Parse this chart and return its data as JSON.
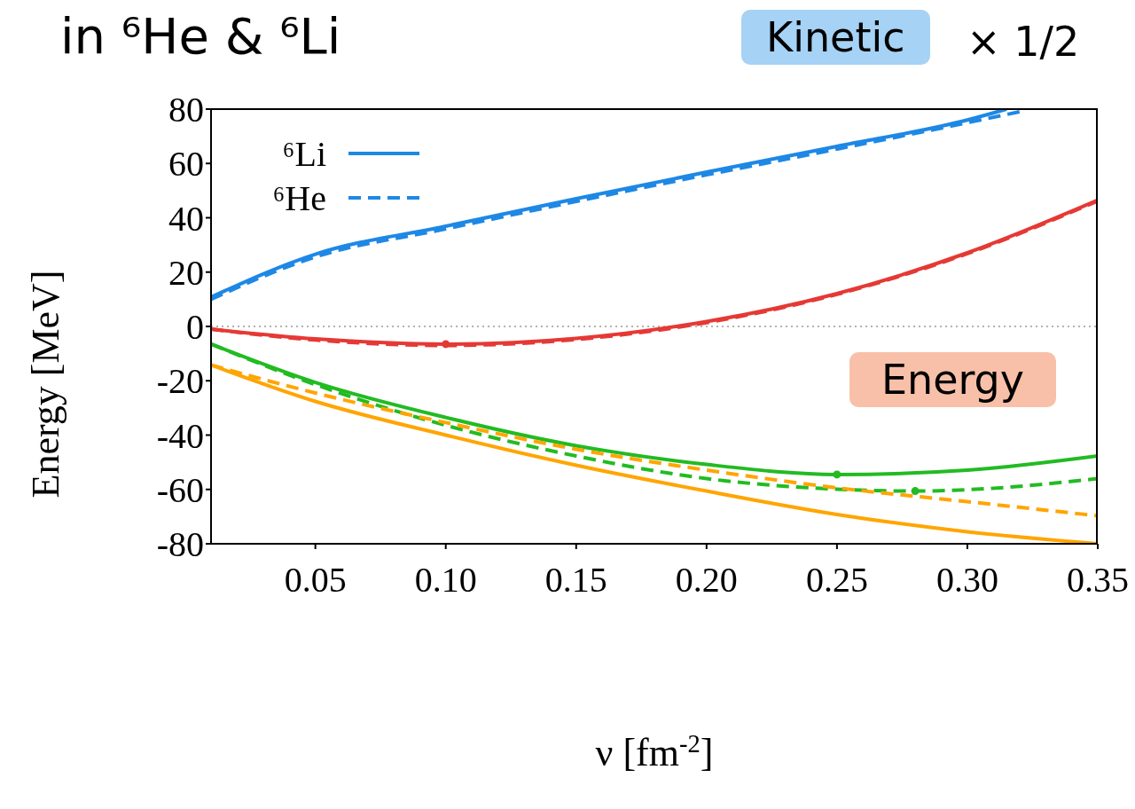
{
  "chart_data": {
    "type": "line",
    "title": "in ⁶He & ⁶Li",
    "xlabel": "ν [fm$^{-2}$]",
    "ylabel": "Energy [MeV]",
    "annotations": [
      "Kinetic",
      "× 1/2",
      "Energy"
    ],
    "xlim": [
      0.01,
      0.35
    ],
    "xticks": [
      0.05,
      {
        "value": 0.1,
        "label": "0.10"
      },
      0.15,
      {
        "value": 0.2,
        "label": "0.20"
      },
      0.25,
      {
        "value": 0.3,
        "label": "0.30"
      },
      0.35
    ],
    "ylim": [
      -80,
      80
    ],
    "yticks": [
      -80,
      -60,
      -40,
      -20,
      0,
      20,
      40,
      60,
      80
    ],
    "legend": "top left",
    "ref_lines": [
      {
        "axis": "y",
        "value": 0,
        "color": "#999999",
        "line_style": "dotted"
      }
    ],
    "series": [
      {
        "name": "⁶Li",
        "color": "#1e88e5",
        "line_style": "solid",
        "x": [
          0.01,
          0.05,
          0.1,
          0.15,
          0.2,
          0.25,
          0.3,
          0.315
        ],
        "values": [
          10.8,
          26.6,
          36.9,
          47,
          56.8,
          66.3,
          76,
          80
        ]
      },
      {
        "name": "⁶He",
        "color": "#1e88e5",
        "line_style": "dashed",
        "x": [
          0.01,
          0.05,
          0.1,
          0.15,
          0.2,
          0.25,
          0.3,
          0.32
        ],
        "values": [
          10,
          25.6,
          35.9,
          46,
          55.8,
          65.3,
          75,
          79
        ]
      },
      {
        "color": "#e53935",
        "line_style": "solid",
        "x": [
          0.01,
          0.05,
          0.1,
          0.15,
          0.2,
          0.25,
          0.3,
          0.35
        ],
        "values": [
          -1,
          -4.6,
          -6.5,
          -4.4,
          1.8,
          12.1,
          27.1,
          46.5
        ]
      },
      {
        "color": "#e53935",
        "line_style": "dashed",
        "x": [
          0.01,
          0.05,
          0.1,
          0.15,
          0.2,
          0.25,
          0.3,
          0.35
        ],
        "values": [
          -1,
          -5,
          -7,
          -4.8,
          1.4,
          11.8,
          26.8,
          46.2
        ]
      },
      {
        "color": "#22bb22",
        "line_style": "solid",
        "x": [
          0.01,
          0.05,
          0.1,
          0.15,
          0.2,
          0.25,
          0.3,
          0.35
        ],
        "values": [
          -6.5,
          -20.6,
          -33.5,
          -43.9,
          -50.8,
          -54.5,
          -52.9,
          -47.7
        ]
      },
      {
        "color": "#22bb22",
        "line_style": "dashed",
        "x": [
          0.01,
          0.05,
          0.1,
          0.15,
          0.2,
          0.25,
          0.28,
          0.3,
          0.35
        ],
        "values": [
          -6.5,
          -21.4,
          -36.4,
          -47.7,
          -56,
          -59.9,
          -60.6,
          -60.1,
          -56
        ]
      },
      {
        "color": "#ffa500",
        "line_style": "solid",
        "x": [
          0.01,
          0.05,
          0.1,
          0.15,
          0.2,
          0.25,
          0.3,
          0.35
        ],
        "values": [
          -14.2,
          -27.6,
          -40,
          -51.1,
          -60.6,
          -69.2,
          -75.6,
          -80
        ]
      },
      {
        "color": "#ffa500",
        "line_style": "dashed",
        "x": [
          0.01,
          0.05,
          0.1,
          0.15,
          0.2,
          0.25,
          0.3,
          0.35
        ],
        "values": [
          -14.2,
          -24.5,
          -35.4,
          -45.2,
          -52.9,
          -59.4,
          -64.5,
          -69.7
        ]
      },
      {
        "type": "scatter",
        "color": "#e53935",
        "marker": "circle",
        "x": [
          0.1
        ],
        "values": [
          -6.5
        ]
      },
      {
        "type": "scatter",
        "color": "#22bb22",
        "marker": "circle",
        "x": [
          0.25,
          0.28
        ],
        "values": [
          -54.5,
          -60.6
        ]
      }
    ]
  }
}
